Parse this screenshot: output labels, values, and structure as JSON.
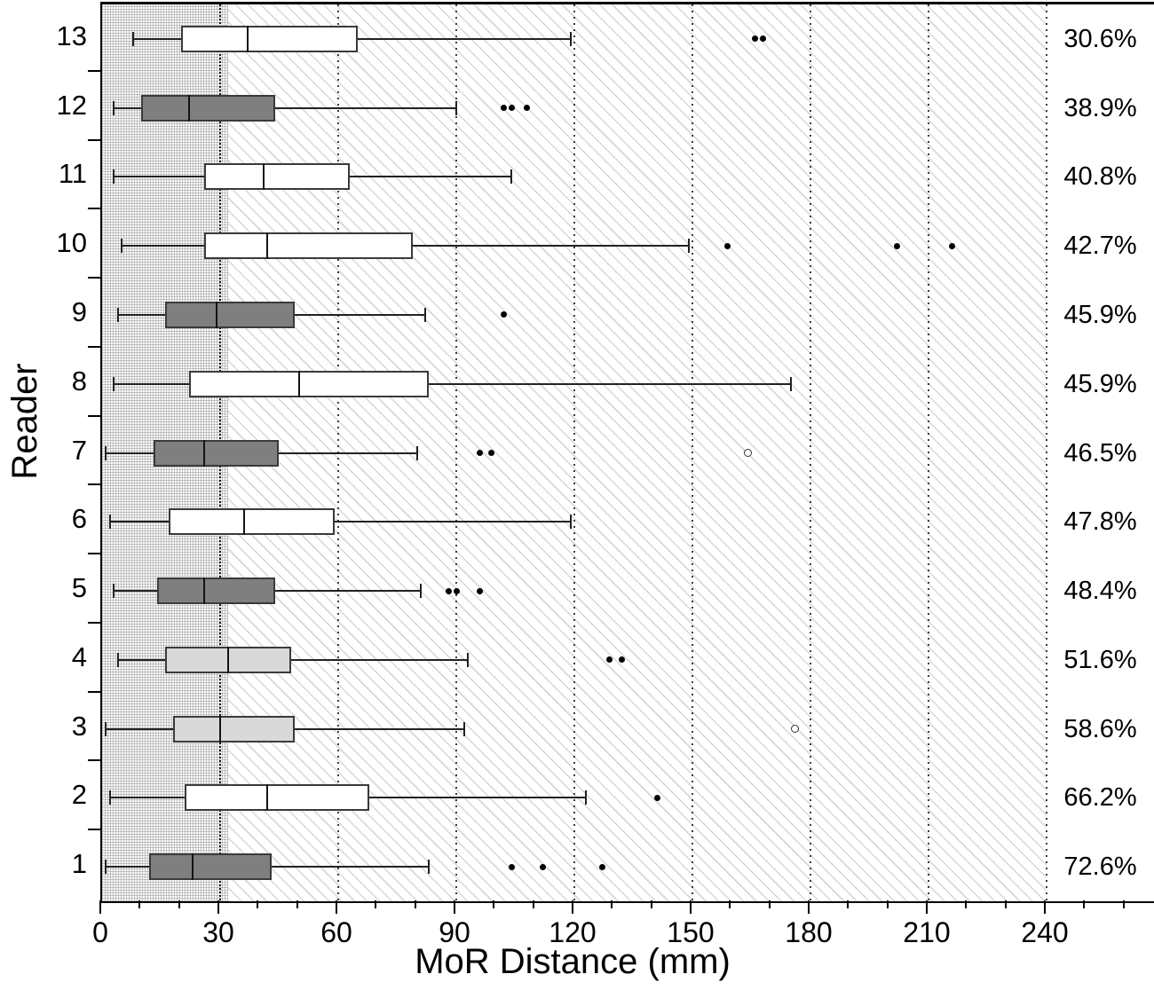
{
  "chart_data": {
    "type": "boxplot",
    "orientation": "horizontal",
    "title": "",
    "xlabel": "MoR Distance (mm)",
    "ylabel": "Reader",
    "x_major_ticks": [
      0,
      30,
      60,
      90,
      120,
      150,
      180,
      210,
      240
    ],
    "x_minor_tick_step": 10,
    "x_minor_tick_max": 260,
    "xlim": [
      0,
      267
    ],
    "grid": "dotted vertical lines at every 30 mm",
    "legend_position": "none",
    "shaded_mesh_region_mm": [
      0,
      32
    ],
    "hatched_region_mm": [
      32,
      240
    ],
    "dense_dotted_line_mm": 30,
    "readers": [
      {
        "reader": "13",
        "percent": "30.6%",
        "whisker_low": 8,
        "q1": 20,
        "median": 37,
        "q3": 65,
        "whisker_high": 119,
        "outliers": [
          166,
          168
        ],
        "far_outliers": [],
        "fill": "white"
      },
      {
        "reader": "12",
        "percent": "38.9%",
        "whisker_low": 3,
        "q1": 10,
        "median": 22,
        "q3": 44,
        "whisker_high": 90,
        "outliers": [
          102,
          104,
          108
        ],
        "far_outliers": [],
        "fill": "dark"
      },
      {
        "reader": "11",
        "percent": "40.8%",
        "whisker_low": 3,
        "q1": 26,
        "median": 41,
        "q3": 63,
        "whisker_high": 104,
        "outliers": [],
        "far_outliers": [],
        "fill": "white"
      },
      {
        "reader": "10",
        "percent": "42.7%",
        "whisker_low": 5,
        "q1": 26,
        "median": 42,
        "q3": 79,
        "whisker_high": 149,
        "outliers": [
          159,
          202,
          216
        ],
        "far_outliers": [],
        "fill": "white"
      },
      {
        "reader": "9",
        "percent": "45.9%",
        "whisker_low": 4,
        "q1": 16,
        "median": 29,
        "q3": 49,
        "whisker_high": 82,
        "outliers": [
          102
        ],
        "far_outliers": [],
        "fill": "dark"
      },
      {
        "reader": "8",
        "percent": "45.9%",
        "whisker_low": 3,
        "q1": 22,
        "median": 50,
        "q3": 83,
        "whisker_high": 175,
        "outliers": [],
        "far_outliers": [],
        "fill": "white"
      },
      {
        "reader": "7",
        "percent": "46.5%",
        "whisker_low": 1,
        "q1": 13,
        "median": 26,
        "q3": 45,
        "whisker_high": 80,
        "outliers": [
          96,
          99
        ],
        "far_outliers": [
          164
        ],
        "fill": "dark"
      },
      {
        "reader": "6",
        "percent": "47.8%",
        "whisker_low": 2,
        "q1": 17,
        "median": 36,
        "q3": 59,
        "whisker_high": 119,
        "outliers": [],
        "far_outliers": [],
        "fill": "white"
      },
      {
        "reader": "5",
        "percent": "48.4%",
        "whisker_low": 3,
        "q1": 14,
        "median": 26,
        "q3": 44,
        "whisker_high": 81,
        "outliers": [
          88,
          90,
          96
        ],
        "far_outliers": [],
        "fill": "dark"
      },
      {
        "reader": "4",
        "percent": "51.6%",
        "whisker_low": 4,
        "q1": 16,
        "median": 32,
        "q3": 48,
        "whisker_high": 93,
        "outliers": [
          129,
          132
        ],
        "far_outliers": [],
        "fill": "light"
      },
      {
        "reader": "3",
        "percent": "58.6%",
        "whisker_low": 1,
        "q1": 18,
        "median": 30,
        "q3": 49,
        "whisker_high": 92,
        "outliers": [],
        "far_outliers": [
          176
        ],
        "fill": "light"
      },
      {
        "reader": "2",
        "percent": "66.2%",
        "whisker_low": 2,
        "q1": 21,
        "median": 42,
        "q3": 68,
        "whisker_high": 123,
        "outliers": [
          141
        ],
        "far_outliers": [],
        "fill": "white"
      },
      {
        "reader": "1",
        "percent": "72.6%",
        "whisker_low": 1,
        "q1": 12,
        "median": 23,
        "q3": 43,
        "whisker_high": 83,
        "outliers": [
          104,
          112,
          127
        ],
        "far_outliers": [],
        "fill": "dark"
      }
    ],
    "colors": {
      "dark_fill": "#7f7f7f",
      "light_fill": "#d9d9d9",
      "white_fill": "#ffffff",
      "box_border": "#3a3a3a",
      "whisker": "#222222",
      "outlier": "#000000",
      "hatch_line": "#d7d7d7",
      "axis": "#000000"
    }
  }
}
